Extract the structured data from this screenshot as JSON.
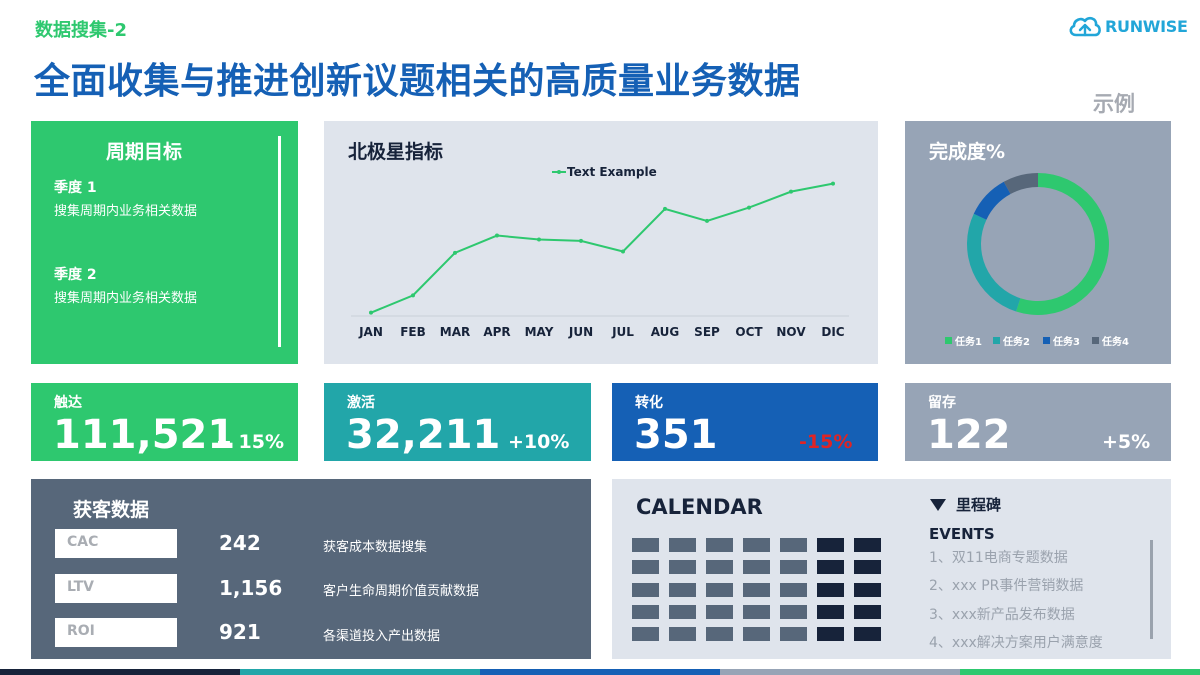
{
  "header": {
    "subtitle": "数据搜集-2",
    "title": "全面收集与推进创新议题相关的高质量业务数据",
    "example_tag": "示例",
    "logo_text": "RUNWISE"
  },
  "goals": {
    "title": "周期目标",
    "items": [
      {
        "label": "季度 1",
        "desc": "搜集周期内业务相关数据"
      },
      {
        "label": "季度 2",
        "desc": "搜集周期内业务相关数据"
      }
    ]
  },
  "north_star": {
    "title": "北极星指标"
  },
  "chart_data": {
    "type": "line",
    "categories": [
      "JAN",
      "FEB",
      "MAR",
      "APR",
      "MAY",
      "JUN",
      "JUL",
      "AUG",
      "SEP",
      "OCT",
      "NOV",
      "DIC"
    ],
    "series": [
      {
        "name": "Text Example",
        "values": [
          1,
          14,
          46,
          59,
          56,
          55,
          47,
          79,
          70,
          80,
          92,
          98
        ],
        "color": "#2ec86f"
      }
    ],
    "ylim": [
      0,
      100
    ],
    "legend": "top-center",
    "grid": false
  },
  "completion": {
    "title": "完成度%",
    "slices": [
      {
        "name": "任务1",
        "value": 55,
        "color": "#2ec86f"
      },
      {
        "name": "任务2",
        "value": 27,
        "color": "#22a6a9"
      },
      {
        "name": "任务3",
        "value": 10,
        "color": "#1560b5"
      },
      {
        "name": "任务4",
        "value": 8,
        "color": "#57677a"
      }
    ]
  },
  "kpis": [
    {
      "label": "触达",
      "value": "111,521",
      "change": "+ 15%",
      "bg": "#2ec86f",
      "change_color": "#ffffff"
    },
    {
      "label": "激活",
      "value": "32,211",
      "change": "+10%",
      "bg": "#22a6a9",
      "change_color": "#ffffff"
    },
    {
      "label": "转化",
      "value": "351",
      "change": "-15%",
      "bg": "#1560b5",
      "change_color": "#e02424"
    },
    {
      "label": "留存",
      "value": "122",
      "change": "+5%",
      "bg": "#97a4b6",
      "change_color": "#ffffff"
    }
  ],
  "acquisition": {
    "title": "获客数据",
    "rows": [
      {
        "metric": "CAC",
        "value": "242",
        "desc": "获客成本数据搜集"
      },
      {
        "metric": "LTV",
        "value": "1,156",
        "desc": "客户生命周期价值贡献数据"
      },
      {
        "metric": "ROI",
        "value": "921",
        "desc": "各渠道投入产出数据"
      }
    ]
  },
  "calendar": {
    "title": "CALENDAR",
    "milestone_title": "里程碑",
    "events_label": "EVENTS",
    "events": [
      "1、双11电商专题数据",
      "2、xxx PR事件营销数据",
      "3、xxx新产品发布数据",
      "4、xxx解决方案用户满意度"
    ]
  },
  "colors": {
    "green": "#2ec86f",
    "teal": "#22a6a9",
    "blue": "#1560b5",
    "slate": "#57677a",
    "gray_blue": "#97a4b6",
    "navy": "#17233a"
  }
}
